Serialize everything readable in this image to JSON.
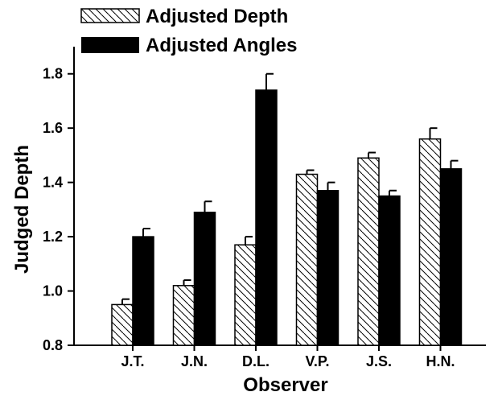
{
  "chart_data": {
    "type": "bar",
    "categories": [
      "J.T.",
      "J.N.",
      "D.L.",
      "V.P.",
      "J.S.",
      "H.N."
    ],
    "series": [
      {
        "name": "Adjusted Depth",
        "values": [
          0.95,
          1.02,
          1.17,
          1.43,
          1.49,
          1.56
        ],
        "errors": [
          0.02,
          0.02,
          0.03,
          0.015,
          0.02,
          0.04
        ],
        "fill": "hatched"
      },
      {
        "name": "Adjusted Angles",
        "values": [
          1.2,
          1.29,
          1.74,
          1.37,
          1.35,
          1.45
        ],
        "errors": [
          0.03,
          0.04,
          0.06,
          0.03,
          0.02,
          0.03
        ],
        "fill": "solid"
      }
    ],
    "xlabel": "Observer",
    "ylabel": "Judged Depth",
    "ylim": [
      0.8,
      1.9
    ],
    "yticks": [
      "0.8",
      "1.0",
      "1.2",
      "1.4",
      "1.6",
      "1.8"
    ],
    "legend_position": "top-left",
    "grid": false,
    "colors": {
      "bar_solid": "#000000",
      "bar_hatched_stroke": "#000000",
      "bar_hatched_bg": "#ffffff"
    }
  }
}
